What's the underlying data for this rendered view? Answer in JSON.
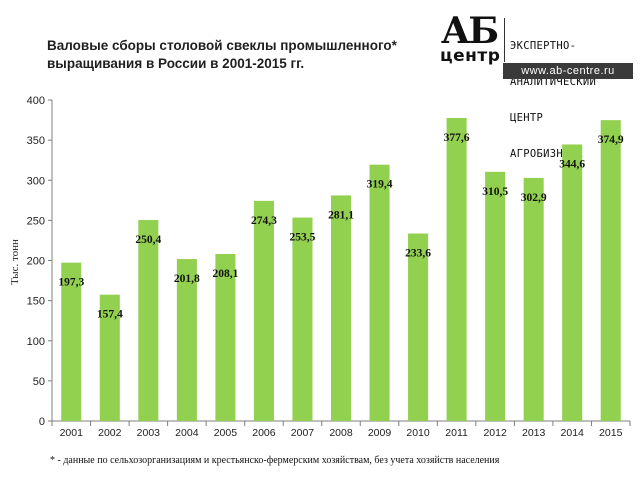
{
  "title_line1": "Валовые сборы столовой свеклы промышленного*",
  "title_line2": "выращивания в России в 2001-2015 гг.",
  "logo": {
    "mark_top": "АБ",
    "mark_bottom": "центр",
    "lines": [
      "ЭКСПЕРТНО-",
      "АНАЛИТИЧЕСКИЙ",
      "ЦЕНТР",
      "АГРОБИЗНЕСА"
    ],
    "url": "www.ab-centre.ru"
  },
  "footnote": "* - данные по сельхозорганизациям  и крестьянско-фермерским  хозяйствам, без учета хозяйств населения",
  "colors": {
    "bar": "#92d050",
    "axis": "#7f7f7f"
  },
  "chart_data": {
    "type": "bar",
    "title": "Валовые сборы столовой свеклы промышленного* выращивания в России в 2001-2015 гг.",
    "ylabel": "Тыс. тонн",
    "xlabel": "",
    "ylim": [
      0,
      400
    ],
    "yticks": [
      0,
      50,
      100,
      150,
      200,
      250,
      300,
      350,
      400
    ],
    "grid": false,
    "categories": [
      "2001",
      "2002",
      "2003",
      "2004",
      "2005",
      "2006",
      "2007",
      "2008",
      "2009",
      "2010",
      "2011",
      "2012",
      "2013",
      "2014",
      "2015"
    ],
    "values": [
      197.3,
      157.4,
      250.4,
      201.8,
      208.1,
      274.3,
      253.5,
      281.1,
      319.4,
      233.6,
      377.6,
      310.5,
      302.9,
      344.6,
      374.9
    ],
    "value_labels": [
      "197,3",
      "157,4",
      "250,4",
      "201,8",
      "208,1",
      "274,3",
      "253,5",
      "281,1",
      "319,4",
      "233,6",
      "377,6",
      "310,5",
      "302,9",
      "344,6",
      "374,9"
    ]
  }
}
